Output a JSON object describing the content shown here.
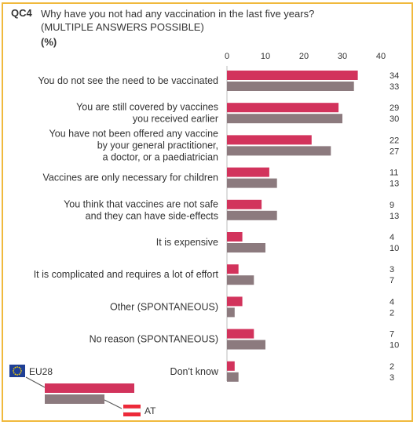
{
  "question": {
    "code": "QC4",
    "text": "Why have you not had any vaccination in the last five years?",
    "subtext": "(MULTIPLE ANSWERS POSSIBLE)",
    "unit": "(%)"
  },
  "colors": {
    "eu28": "#d2335c",
    "at": "#8c7a7e",
    "border": "#f0b93c"
  },
  "chart_data": {
    "type": "bar",
    "orientation": "horizontal",
    "xlim": [
      0,
      40
    ],
    "ticks": [
      "0",
      "10",
      "20",
      "30",
      "40"
    ],
    "categories": [
      [
        "You do not see the need to be vaccinated"
      ],
      [
        "You are still covered by vaccines",
        "you received earlier"
      ],
      [
        "You have not been offered any vaccine",
        "by your general practitioner,",
        "a doctor, or a paediatrician"
      ],
      [
        "Vaccines are only necessary for children"
      ],
      [
        "You think that vaccines are not safe",
        "and they can have side-effects"
      ],
      [
        "It is expensive"
      ],
      [
        "It is complicated and requires a lot of effort"
      ],
      [
        "Other (SPONTANEOUS)"
      ],
      [
        "No reason (SPONTANEOUS)"
      ],
      [
        "Don't know"
      ]
    ],
    "series": [
      {
        "name": "EU28",
        "values": [
          34,
          29,
          22,
          11,
          9,
          4,
          3,
          4,
          7,
          2
        ]
      },
      {
        "name": "AT",
        "values": [
          33,
          30,
          27,
          13,
          13,
          10,
          7,
          2,
          10,
          3
        ]
      }
    ]
  },
  "legend": {
    "eu_icon": "eu-flag-icon",
    "at_icon": "austria-flag-icon"
  }
}
